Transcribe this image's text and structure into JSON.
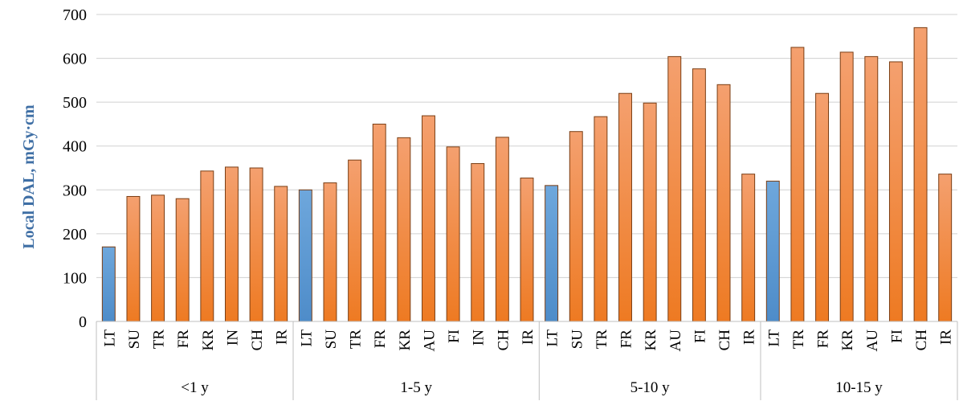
{
  "chart_data": {
    "type": "bar",
    "title": "",
    "ylabel": "Local DAL, mGy·cm",
    "xlabel": "",
    "ylim": [
      0,
      700
    ],
    "yticks": [
      0,
      100,
      200,
      300,
      400,
      500,
      600,
      700
    ],
    "grid": true,
    "legend": "none",
    "colors": {
      "highlight": "#5b9bd5",
      "other": "#ed7d31",
      "bar_edge": "#7a3e14",
      "grid": "#d0d0d0"
    },
    "groups": [
      {
        "label": "<1 y",
        "bars": [
          {
            "label": "LT",
            "value": 170,
            "highlight": true
          },
          {
            "label": "SU",
            "value": 285,
            "highlight": false
          },
          {
            "label": "TR",
            "value": 288,
            "highlight": false
          },
          {
            "label": "FR",
            "value": 280,
            "highlight": false
          },
          {
            "label": "KR",
            "value": 343,
            "highlight": false
          },
          {
            "label": "IN",
            "value": 352,
            "highlight": false
          },
          {
            "label": "CH",
            "value": 350,
            "highlight": false
          },
          {
            "label": "IR",
            "value": 308,
            "highlight": false
          }
        ]
      },
      {
        "label": "1-5 y",
        "bars": [
          {
            "label": "LT",
            "value": 300,
            "highlight": true
          },
          {
            "label": "SU",
            "value": 316,
            "highlight": false
          },
          {
            "label": "TR",
            "value": 368,
            "highlight": false
          },
          {
            "label": "FR",
            "value": 450,
            "highlight": false
          },
          {
            "label": "KR",
            "value": 419,
            "highlight": false
          },
          {
            "label": "AU",
            "value": 469,
            "highlight": false
          },
          {
            "label": "FI",
            "value": 398,
            "highlight": false
          },
          {
            "label": "IN",
            "value": 360,
            "highlight": false
          },
          {
            "label": "CH",
            "value": 420,
            "highlight": false
          },
          {
            "label": "IR",
            "value": 327,
            "highlight": false
          }
        ]
      },
      {
        "label": "5-10 y",
        "bars": [
          {
            "label": "LT",
            "value": 310,
            "highlight": true
          },
          {
            "label": "SU",
            "value": 433,
            "highlight": false
          },
          {
            "label": "TR",
            "value": 467,
            "highlight": false
          },
          {
            "label": "FR",
            "value": 520,
            "highlight": false
          },
          {
            "label": "KR",
            "value": 498,
            "highlight": false
          },
          {
            "label": "AU",
            "value": 604,
            "highlight": false
          },
          {
            "label": "FI",
            "value": 576,
            "highlight": false
          },
          {
            "label": "CH",
            "value": 540,
            "highlight": false
          },
          {
            "label": "IR",
            "value": 336,
            "highlight": false
          }
        ]
      },
      {
        "label": "10-15 y",
        "bars": [
          {
            "label": "LT",
            "value": 320,
            "highlight": true
          },
          {
            "label": "TR",
            "value": 625,
            "highlight": false
          },
          {
            "label": "FR",
            "value": 520,
            "highlight": false
          },
          {
            "label": "KR",
            "value": 614,
            "highlight": false
          },
          {
            "label": "AU",
            "value": 604,
            "highlight": false
          },
          {
            "label": "FI",
            "value": 592,
            "highlight": false
          },
          {
            "label": "CH",
            "value": 670,
            "highlight": false
          },
          {
            "label": "IR",
            "value": 336,
            "highlight": false
          }
        ]
      }
    ]
  }
}
